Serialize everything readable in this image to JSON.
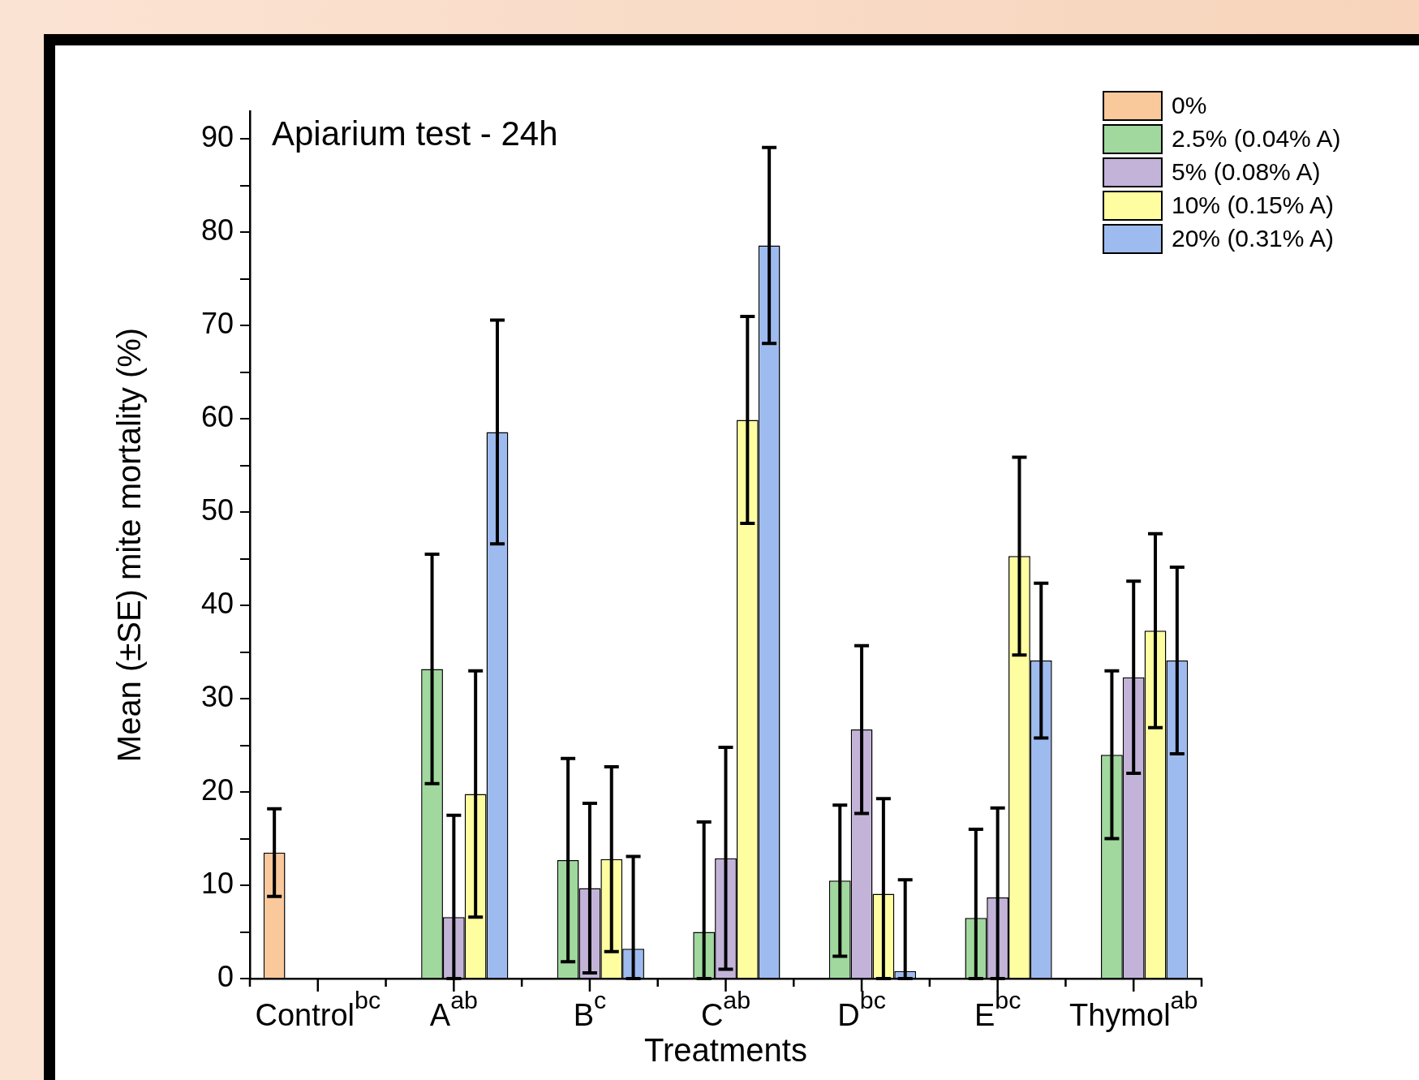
{
  "chart_data": {
    "type": "bar",
    "title": "Apiarium test - 24h",
    "xlabel": "Treatments",
    "ylabel": "Mean (±SE) mite mortality (%)",
    "categories": [
      "Control$^{bc}$",
      "A$^{ab}$",
      "B$^{c}$",
      "C$^{ab}$",
      "D$^{bc}$",
      "E$^{bc}$",
      "Thymol$^{ab}$"
    ],
    "series": [
      {
        "name": "0%",
        "color": "#f9c89b",
        "values": [
          13.5,
          null,
          null,
          null,
          null,
          null,
          null
        ],
        "errors": [
          4.7,
          null,
          null,
          null,
          null,
          null,
          null
        ]
      },
      {
        "name": "2.5% (0.04% A)",
        "color": "#a0d89e",
        "values": [
          null,
          33.2,
          12.7,
          5.0,
          10.5,
          6.5,
          24.0
        ],
        "errors": [
          null,
          12.3,
          10.9,
          [
            0,
            16.8
          ],
          8.1,
          [
            0,
            16.0
          ],
          9.0
        ]
      },
      {
        "name": "5% (0.08% A)",
        "color": "#c3b3d9",
        "values": [
          null,
          6.6,
          9.7,
          12.9,
          26.7,
          8.7,
          32.3
        ],
        "errors": [
          null,
          [
            0,
            17.5
          ],
          9.1,
          11.9,
          9.0,
          [
            0,
            18.3
          ],
          10.3
        ]
      },
      {
        "name": "10% (0.15% A)",
        "color": "#fefea0",
        "values": [
          null,
          19.8,
          12.8,
          59.9,
          9.1,
          45.3,
          37.3
        ],
        "errors": [
          null,
          13.2,
          9.9,
          11.1,
          [
            0,
            19.3
          ],
          10.6,
          10.4
        ]
      },
      {
        "name": "20% (0.31% A)",
        "color": "#9ebbf0",
        "values": [
          null,
          58.6,
          3.2,
          78.6,
          0.8,
          34.1,
          34.1
        ],
        "errors": [
          null,
          12.0,
          [
            0,
            13.1
          ],
          10.5,
          [
            0,
            10.6
          ],
          8.3,
          10.0
        ]
      }
    ],
    "ylim": [
      0,
      93
    ],
    "yticks": [
      0,
      {
        "value": 5,
        "label": null
      },
      10,
      {
        "value": 15,
        "label": null
      },
      20,
      {
        "value": 25,
        "label": null
      },
      30,
      {
        "value": 35,
        "label": null
      },
      40,
      {
        "value": 45,
        "label": null
      },
      50,
      {
        "value": 55,
        "label": null
      },
      60,
      {
        "value": 65,
        "label": null
      },
      70,
      {
        "value": 75,
        "label": null
      },
      80,
      {
        "value": 85,
        "label": null
      },
      90
    ],
    "legend": "top right"
  }
}
